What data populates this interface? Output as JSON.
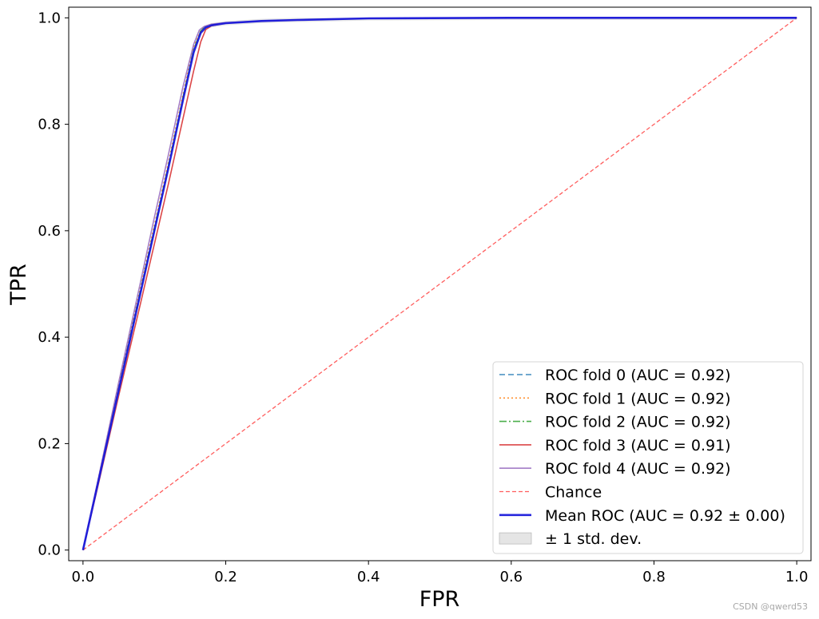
{
  "chart_data": {
    "type": "line",
    "title": "",
    "xlabel": "FPR",
    "ylabel": "TPR",
    "xlim": [
      -0.02,
      1.02
    ],
    "ylim": [
      -0.02,
      1.02
    ],
    "xticks": [
      0.0,
      0.2,
      0.4,
      0.6,
      0.8,
      1.0
    ],
    "yticks": [
      0.0,
      0.2,
      0.4,
      0.6,
      0.8,
      1.0
    ],
    "xtick_labels": [
      "0.0",
      "0.2",
      "0.4",
      "0.6",
      "0.8",
      "1.0"
    ],
    "ytick_labels": [
      "0.0",
      "0.2",
      "0.4",
      "0.6",
      "0.8",
      "1.0"
    ],
    "grid": false,
    "legend_position": "lower-right",
    "series": [
      {
        "name": "ROC fold 0 (AUC = 0.92)",
        "color": "#1f77b4",
        "dash": "dashed",
        "x": [
          0.0,
          0.02,
          0.05,
          0.08,
          0.1,
          0.12,
          0.14,
          0.155,
          0.165,
          0.17,
          0.18,
          0.2,
          0.25,
          0.3,
          0.4,
          0.6,
          0.8,
          1.0
        ],
        "y": [
          0.0,
          0.12,
          0.3,
          0.48,
          0.6,
          0.72,
          0.85,
          0.94,
          0.975,
          0.982,
          0.986,
          0.99,
          0.994,
          0.996,
          0.999,
          1.0,
          1.0,
          1.0
        ]
      },
      {
        "name": "ROC fold 1 (AUC = 0.92)",
        "color": "#ff7f0e",
        "dash": "dotted",
        "x": [
          0.0,
          0.02,
          0.05,
          0.08,
          0.1,
          0.12,
          0.14,
          0.155,
          0.165,
          0.17,
          0.18,
          0.2,
          0.25,
          0.3,
          0.4,
          0.6,
          0.8,
          1.0
        ],
        "y": [
          0.0,
          0.125,
          0.31,
          0.49,
          0.61,
          0.73,
          0.855,
          0.945,
          0.976,
          0.983,
          0.987,
          0.99,
          0.994,
          0.996,
          0.999,
          1.0,
          1.0,
          1.0
        ]
      },
      {
        "name": "ROC fold 2 (AUC = 0.92)",
        "color": "#2ca02c",
        "dash": "dashdot",
        "x": [
          0.0,
          0.02,
          0.05,
          0.08,
          0.1,
          0.12,
          0.14,
          0.155,
          0.165,
          0.17,
          0.18,
          0.2,
          0.25,
          0.3,
          0.4,
          0.6,
          0.8,
          1.0
        ],
        "y": [
          0.0,
          0.12,
          0.305,
          0.485,
          0.605,
          0.725,
          0.85,
          0.94,
          0.975,
          0.982,
          0.986,
          0.99,
          0.994,
          0.996,
          0.999,
          1.0,
          1.0,
          1.0
        ]
      },
      {
        "name": "ROC fold 3 (AUC = 0.91)",
        "color": "#d62728",
        "dash": "solid",
        "x": [
          0.0,
          0.02,
          0.05,
          0.08,
          0.1,
          0.12,
          0.14,
          0.155,
          0.165,
          0.172,
          0.18,
          0.2,
          0.25,
          0.3,
          0.4,
          0.6,
          0.8,
          1.0
        ],
        "y": [
          0.0,
          0.115,
          0.29,
          0.46,
          0.575,
          0.69,
          0.81,
          0.9,
          0.955,
          0.978,
          0.985,
          0.99,
          0.994,
          0.996,
          0.999,
          1.0,
          1.0,
          1.0
        ]
      },
      {
        "name": "ROC fold 4 (AUC = 0.92)",
        "color": "#9467bd",
        "dash": "solid",
        "x": [
          0.0,
          0.02,
          0.05,
          0.08,
          0.1,
          0.12,
          0.14,
          0.155,
          0.163,
          0.17,
          0.18,
          0.2,
          0.25,
          0.3,
          0.4,
          0.6,
          0.8,
          1.0
        ],
        "y": [
          0.0,
          0.125,
          0.315,
          0.5,
          0.625,
          0.745,
          0.87,
          0.95,
          0.977,
          0.984,
          0.988,
          0.991,
          0.994,
          0.996,
          0.999,
          1.0,
          1.0,
          1.0
        ]
      },
      {
        "name": "Chance",
        "color": "#ff4d4d",
        "dash": "dashed",
        "x": [
          0.0,
          1.0
        ],
        "y": [
          0.0,
          1.0
        ]
      },
      {
        "name": "Mean ROC (AUC = 0.92 ± 0.00)",
        "color": "#1a1adb",
        "dash": "solid",
        "x": [
          0.0,
          0.02,
          0.05,
          0.08,
          0.1,
          0.12,
          0.14,
          0.155,
          0.165,
          0.172,
          0.18,
          0.2,
          0.25,
          0.3,
          0.4,
          0.6,
          0.8,
          1.0
        ],
        "y": [
          0.0,
          0.12,
          0.3,
          0.48,
          0.6,
          0.72,
          0.845,
          0.935,
          0.972,
          0.982,
          0.986,
          0.99,
          0.994,
          0.996,
          0.999,
          1.0,
          1.0,
          1.0
        ]
      }
    ],
    "band": {
      "name": "± 1 std. dev.",
      "color": "#cccccc"
    }
  },
  "watermark": "CSDN @qwerd53"
}
